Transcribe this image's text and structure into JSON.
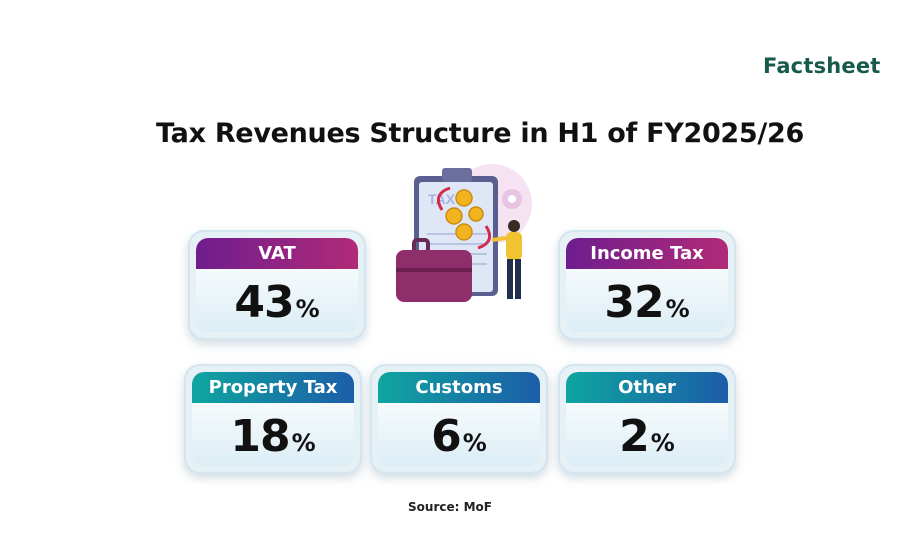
{
  "brand": "Factsheet",
  "title": "Tax Revenues Structure in H1 of FY2025/26",
  "source": "Source: MoF",
  "illustration": {
    "clipboard_label": "TAX"
  },
  "percent_sign": "%",
  "colors": {
    "purple": "#6e1d8e",
    "magenta": "#b12a77",
    "teal": "#0ea5a0",
    "blue": "#1c5da8",
    "brand_green": "#17594a"
  },
  "chart_data": {
    "type": "table",
    "title": "Tax Revenues Structure in H1 of FY2025/26",
    "unit": "%",
    "categories": [
      "VAT",
      "Income Tax",
      "Property Tax",
      "Customs",
      "Other"
    ],
    "values": [
      43,
      32,
      18,
      6,
      2
    ]
  }
}
